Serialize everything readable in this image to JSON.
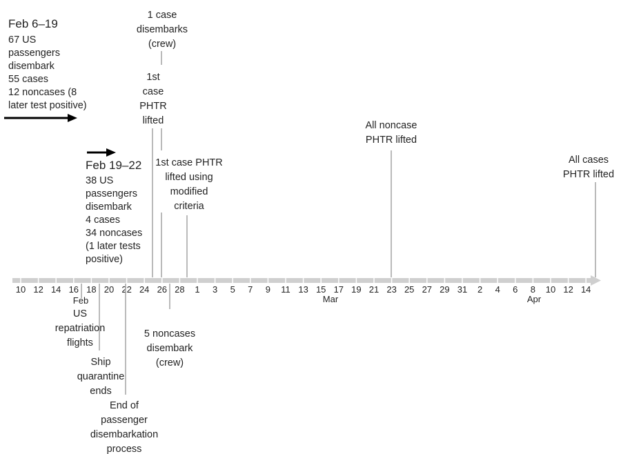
{
  "timeline": {
    "ticks": [
      "10",
      "12",
      "14",
      "16",
      "18",
      "20",
      "22",
      "24",
      "26",
      "28",
      "1",
      "3",
      "5",
      "7",
      "9",
      "11",
      "13",
      "15",
      "17",
      "19",
      "21",
      "23",
      "25",
      "27",
      "29",
      "31",
      "2",
      "4",
      "6",
      "8",
      "10",
      "12",
      "14"
    ],
    "months": [
      "Feb",
      "Mar",
      "Apr"
    ]
  },
  "blocks": {
    "feb6_19": {
      "heading": "Feb 6–19",
      "lines": [
        "67 US",
        "passengers",
        "disembark",
        "55 cases",
        "12 noncases (8",
        "later test positive)"
      ]
    },
    "feb19_22": {
      "heading": "Feb 19–22",
      "lines": [
        "38 US",
        "passengers",
        "disembark",
        "4 cases",
        "34 noncases",
        "(1 later tests",
        "positive)"
      ]
    }
  },
  "annotations": {
    "crew_case": [
      "1 case",
      "disembarks",
      "(crew)"
    ],
    "first_case_lifted": [
      "1st",
      "case",
      "PHTR",
      "lifted"
    ],
    "modified_criteria": [
      "1st case PHTR",
      "lifted using",
      "modified",
      "criteria"
    ],
    "all_noncase": [
      "All noncase",
      "PHTR lifted"
    ],
    "all_cases": [
      "All cases",
      "PHTR lifted"
    ],
    "repatriation": [
      "US",
      "repatriation",
      "flights"
    ],
    "noncases_crew": [
      "5 noncases",
      "disembark",
      "(crew)"
    ],
    "quarantine_ends": [
      "Ship",
      "quarantine",
      "ends"
    ],
    "end_disembarkation": [
      "End of",
      "passenger",
      "disembarkation",
      "process"
    ]
  }
}
